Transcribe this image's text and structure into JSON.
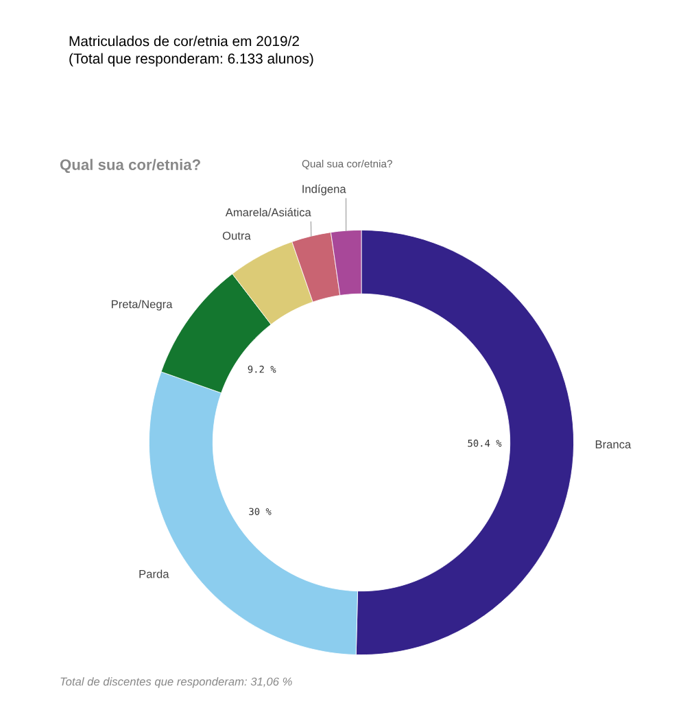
{
  "chart_data": {
    "type": "donut",
    "title": "Matriculados de cor/etnia em 2019/2\n(Total que responderam: 6.133 alunos)",
    "subtitle": "Qual sua cor/etnia?",
    "categories": [
      "Branca",
      "Parda",
      "Preta/Negra",
      "Outra",
      "Amarela/Asiática",
      "Indígena"
    ],
    "values": [
      50.4,
      30,
      9.2,
      5.1,
      3.0,
      2.3
    ],
    "colors": [
      "#34228a",
      "#8ccdee",
      "#14772f",
      "#dccb76",
      "#c96472",
      "#a84899"
    ],
    "value_labels": [
      "50.4 %",
      "30 %",
      "9.2 %",
      null,
      null,
      null
    ],
    "annotations": [
      "Qual sua cor/etnia?",
      "Total de discentes que responderam: 31,06 %"
    ]
  }
}
